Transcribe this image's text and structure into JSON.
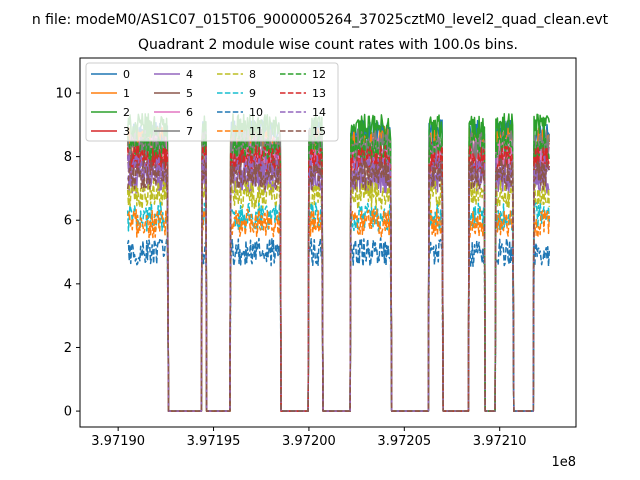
{
  "chart_data": {
    "type": "line",
    "suptitle": "n file: modeM0/AS1C07_015T06_9000005264_37025cztM0_level2_quad_clean.evt",
    "title": "Quadrant 2 module wise count rates with 100.0s bins.",
    "xlabel": "",
    "ylabel": "",
    "x_offset_label": "1e8",
    "xlim": [
      3.97188,
      3.97214
    ],
    "ylim": [
      -0.5,
      11.1
    ],
    "x_ticks": [
      3.9719,
      3.97195,
      3.972,
      3.97205,
      3.9721
    ],
    "x_tick_labels": [
      "3.97190",
      "3.97195",
      "3.97200",
      "3.97205",
      "3.97210"
    ],
    "y_ticks": [
      0,
      2,
      4,
      6,
      8,
      10
    ],
    "y_tick_labels": [
      "0",
      "2",
      "4",
      "6",
      "8",
      "10"
    ],
    "legend_position": "upper-left",
    "legend_columns": 4,
    "segments": [
      {
        "x_start": 3.971905,
        "x_end": 3.971926
      },
      {
        "x_start": 3.971944,
        "x_end": 3.971946
      },
      {
        "x_start": 3.971959,
        "x_end": 3.971985
      },
      {
        "x_start": 3.972,
        "x_end": 3.972007
      },
      {
        "x_start": 3.972022,
        "x_end": 3.972043
      },
      {
        "x_start": 3.972063,
        "x_end": 3.97207
      },
      {
        "x_start": 3.972084,
        "x_end": 3.972092
      },
      {
        "x_start": 3.972098,
        "x_end": 3.972107
      },
      {
        "x_start": 3.972118,
        "x_end": 3.972126
      }
    ],
    "off_value": 0,
    "series": [
      {
        "name": "0",
        "color": "#1f77b4",
        "dash": "solid",
        "level": 8.7
      },
      {
        "name": "1",
        "color": "#ff7f0e",
        "dash": "solid",
        "level": 8.5
      },
      {
        "name": "2",
        "color": "#2ca02c",
        "dash": "solid",
        "level": 8.9
      },
      {
        "name": "3",
        "color": "#d62728",
        "dash": "solid",
        "level": 8.0
      },
      {
        "name": "4",
        "color": "#9467bd",
        "dash": "solid",
        "level": 7.3
      },
      {
        "name": "5",
        "color": "#8c564b",
        "dash": "solid",
        "level": 7.8
      },
      {
        "name": "6",
        "color": "#e377c2",
        "dash": "solid",
        "level": 8.2
      },
      {
        "name": "7",
        "color": "#7f7f7f",
        "dash": "solid",
        "level": 8.4
      },
      {
        "name": "8",
        "color": "#bcbd22",
        "dash": "dashed",
        "level": 6.8
      },
      {
        "name": "9",
        "color": "#17becf",
        "dash": "dashed",
        "level": 6.1
      },
      {
        "name": "10",
        "color": "#1f77b4",
        "dash": "dashed",
        "level": 5.0
      },
      {
        "name": "11",
        "color": "#ff7f0e",
        "dash": "dashed",
        "level": 5.9
      },
      {
        "name": "12",
        "color": "#2ca02c",
        "dash": "dashed",
        "level": 8.3
      },
      {
        "name": "13",
        "color": "#d62728",
        "dash": "dashed",
        "level": 7.9
      },
      {
        "name": "14",
        "color": "#9467bd",
        "dash": "dashed",
        "level": 7.6
      },
      {
        "name": "15",
        "color": "#8c564b",
        "dash": "dashed",
        "level": 7.4
      }
    ]
  }
}
